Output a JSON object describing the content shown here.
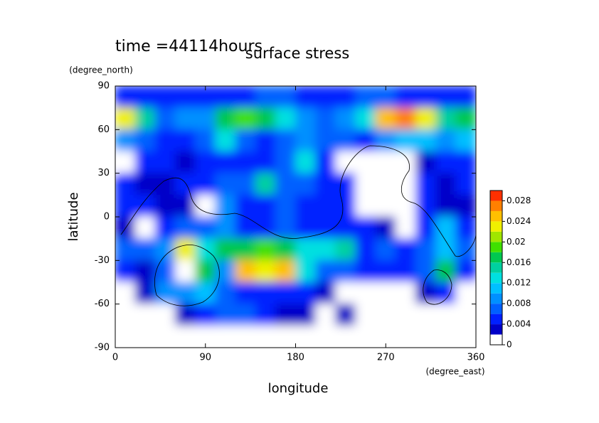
{
  "chart_data": {
    "type": "heatmap",
    "title": "surface stress",
    "subtitle": "time =44114hours",
    "x_label": "longitude",
    "x_unit": "(degree_east)",
    "y_label": "latitude",
    "y_unit": "(degree_north)",
    "x": [
      10,
      30,
      50,
      70,
      90,
      110,
      130,
      150,
      170,
      190,
      210,
      230,
      250,
      270,
      290,
      310,
      330,
      350
    ],
    "y": [
      82.5,
      67.5,
      52.5,
      37.5,
      22.5,
      7.5,
      -7.5,
      -22.5,
      -37.5,
      -52.5,
      -67.5,
      -82.5
    ],
    "z": [
      [
        0.005,
        0.005,
        0.004,
        0.005,
        0.005,
        0.005,
        0.005,
        0.006,
        0.006,
        0.005,
        0.005,
        0.005,
        0.006,
        0.006,
        0.005,
        0.005,
        0.005,
        0.005
      ],
      [
        0.022,
        0.014,
        0.006,
        0.008,
        0.008,
        0.016,
        0.018,
        0.016,
        0.012,
        0.008,
        0.006,
        0.008,
        0.012,
        0.024,
        0.026,
        0.022,
        0.014,
        0.016
      ],
      [
        0.008,
        0.006,
        0.005,
        0.004,
        0.006,
        0.012,
        0.006,
        0.004,
        0.006,
        0.008,
        0.006,
        0.006,
        0.004,
        0.008,
        0.01,
        0.01,
        0.008,
        0.01
      ],
      [
        0,
        0.004,
        0.004,
        0.003,
        0.005,
        0.004,
        0.005,
        0.005,
        0.006,
        0.012,
        0.004,
        0,
        0,
        0,
        0,
        0.003,
        0.005,
        0.004
      ],
      [
        0.004,
        0.003,
        0.003,
        0.004,
        0.005,
        0.006,
        0.006,
        0.014,
        0.006,
        0.006,
        0.004,
        0.005,
        0,
        0,
        0,
        0.004,
        0.003,
        0.004
      ],
      [
        0.004,
        0.004,
        0.003,
        0.002,
        0,
        0.008,
        0.005,
        0.005,
        0.006,
        0.004,
        0.004,
        0.004,
        0,
        0,
        0,
        0.005,
        0.003,
        0.003
      ],
      [
        0.002,
        0,
        0.004,
        0.006,
        0.006,
        0.008,
        0.004,
        0.004,
        0.006,
        0.004,
        0.005,
        0.005,
        0.004,
        0.003,
        0,
        0.004,
        0.01,
        0.004
      ],
      [
        0.006,
        0.006,
        0.008,
        0.022,
        0.012,
        0.016,
        0.016,
        0.018,
        0.016,
        0.012,
        0.012,
        0.014,
        0.004,
        0.006,
        0.004,
        0.006,
        0.01,
        0.006
      ],
      [
        0.004,
        0.003,
        0.006,
        0,
        0.016,
        0.008,
        0.024,
        0.022,
        0.024,
        0.012,
        0.006,
        0.006,
        0.004,
        0.004,
        0.004,
        0.006,
        0.016,
        0.004
      ],
      [
        0,
        0.003,
        0.008,
        0.008,
        0.01,
        0.006,
        0.004,
        0.004,
        0.004,
        0.004,
        0.003,
        0,
        0,
        0,
        0,
        0.003,
        0.004,
        0
      ],
      [
        0,
        0,
        0,
        0.002,
        0.004,
        0.006,
        0.006,
        0.004,
        0.003,
        0.003,
        0,
        0.003,
        0,
        0,
        0,
        0,
        0,
        0
      ],
      [
        0,
        0,
        0,
        0,
        0,
        0,
        0,
        0,
        0,
        0,
        0,
        0,
        0,
        0,
        0,
        0,
        0,
        0
      ]
    ],
    "xlim": [
      0,
      360
    ],
    "xticks": [
      0,
      90,
      180,
      270,
      360
    ],
    "ylim": [
      -90,
      90
    ],
    "yticks": [
      -90,
      -60,
      -30,
      0,
      30,
      60,
      90
    ],
    "clim": [
      0,
      0.03
    ],
    "cticks": [
      0,
      0.004,
      0.008,
      0.012,
      0.016,
      0.02,
      0.024,
      0.028
    ],
    "colormap": [
      "#ffffff",
      "#0000c8",
      "#0020ff",
      "#0060ff",
      "#0090ff",
      "#00c0ff",
      "#00e0e0",
      "#00d0a0",
      "#00c850",
      "#40e000",
      "#a0e600",
      "#f0f000",
      "#ffc000",
      "#ff8000",
      "#ff3000"
    ]
  }
}
